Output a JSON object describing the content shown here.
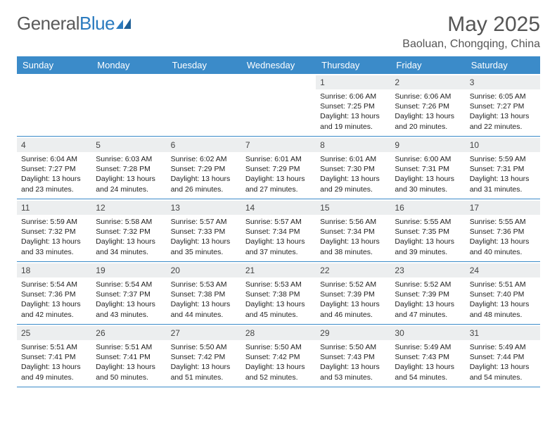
{
  "logo": {
    "text_part1": "General",
    "text_part2": "Blue",
    "brand_color": "#2b7bbf",
    "text_color": "#5a5a5a"
  },
  "header": {
    "month_title": "May 2025",
    "location": "Baoluan, Chongqing, China"
  },
  "colors": {
    "header_bg": "#3b8bc9",
    "header_text": "#ffffff",
    "daynum_bg": "#eceeef",
    "border": "#3b8bc9",
    "body_text": "#222222"
  },
  "day_names": [
    "Sunday",
    "Monday",
    "Tuesday",
    "Wednesday",
    "Thursday",
    "Friday",
    "Saturday"
  ],
  "weeks": [
    [
      {
        "n": "",
        "sr": "",
        "ss": "",
        "dl": ""
      },
      {
        "n": "",
        "sr": "",
        "ss": "",
        "dl": ""
      },
      {
        "n": "",
        "sr": "",
        "ss": "",
        "dl": ""
      },
      {
        "n": "",
        "sr": "",
        "ss": "",
        "dl": ""
      },
      {
        "n": "1",
        "sr": "Sunrise: 6:06 AM",
        "ss": "Sunset: 7:25 PM",
        "dl": "Daylight: 13 hours and 19 minutes."
      },
      {
        "n": "2",
        "sr": "Sunrise: 6:06 AM",
        "ss": "Sunset: 7:26 PM",
        "dl": "Daylight: 13 hours and 20 minutes."
      },
      {
        "n": "3",
        "sr": "Sunrise: 6:05 AM",
        "ss": "Sunset: 7:27 PM",
        "dl": "Daylight: 13 hours and 22 minutes."
      }
    ],
    [
      {
        "n": "4",
        "sr": "Sunrise: 6:04 AM",
        "ss": "Sunset: 7:27 PM",
        "dl": "Daylight: 13 hours and 23 minutes."
      },
      {
        "n": "5",
        "sr": "Sunrise: 6:03 AM",
        "ss": "Sunset: 7:28 PM",
        "dl": "Daylight: 13 hours and 24 minutes."
      },
      {
        "n": "6",
        "sr": "Sunrise: 6:02 AM",
        "ss": "Sunset: 7:29 PM",
        "dl": "Daylight: 13 hours and 26 minutes."
      },
      {
        "n": "7",
        "sr": "Sunrise: 6:01 AM",
        "ss": "Sunset: 7:29 PM",
        "dl": "Daylight: 13 hours and 27 minutes."
      },
      {
        "n": "8",
        "sr": "Sunrise: 6:01 AM",
        "ss": "Sunset: 7:30 PM",
        "dl": "Daylight: 13 hours and 29 minutes."
      },
      {
        "n": "9",
        "sr": "Sunrise: 6:00 AM",
        "ss": "Sunset: 7:31 PM",
        "dl": "Daylight: 13 hours and 30 minutes."
      },
      {
        "n": "10",
        "sr": "Sunrise: 5:59 AM",
        "ss": "Sunset: 7:31 PM",
        "dl": "Daylight: 13 hours and 31 minutes."
      }
    ],
    [
      {
        "n": "11",
        "sr": "Sunrise: 5:59 AM",
        "ss": "Sunset: 7:32 PM",
        "dl": "Daylight: 13 hours and 33 minutes."
      },
      {
        "n": "12",
        "sr": "Sunrise: 5:58 AM",
        "ss": "Sunset: 7:32 PM",
        "dl": "Daylight: 13 hours and 34 minutes."
      },
      {
        "n": "13",
        "sr": "Sunrise: 5:57 AM",
        "ss": "Sunset: 7:33 PM",
        "dl": "Daylight: 13 hours and 35 minutes."
      },
      {
        "n": "14",
        "sr": "Sunrise: 5:57 AM",
        "ss": "Sunset: 7:34 PM",
        "dl": "Daylight: 13 hours and 37 minutes."
      },
      {
        "n": "15",
        "sr": "Sunrise: 5:56 AM",
        "ss": "Sunset: 7:34 PM",
        "dl": "Daylight: 13 hours and 38 minutes."
      },
      {
        "n": "16",
        "sr": "Sunrise: 5:55 AM",
        "ss": "Sunset: 7:35 PM",
        "dl": "Daylight: 13 hours and 39 minutes."
      },
      {
        "n": "17",
        "sr": "Sunrise: 5:55 AM",
        "ss": "Sunset: 7:36 PM",
        "dl": "Daylight: 13 hours and 40 minutes."
      }
    ],
    [
      {
        "n": "18",
        "sr": "Sunrise: 5:54 AM",
        "ss": "Sunset: 7:36 PM",
        "dl": "Daylight: 13 hours and 42 minutes."
      },
      {
        "n": "19",
        "sr": "Sunrise: 5:54 AM",
        "ss": "Sunset: 7:37 PM",
        "dl": "Daylight: 13 hours and 43 minutes."
      },
      {
        "n": "20",
        "sr": "Sunrise: 5:53 AM",
        "ss": "Sunset: 7:38 PM",
        "dl": "Daylight: 13 hours and 44 minutes."
      },
      {
        "n": "21",
        "sr": "Sunrise: 5:53 AM",
        "ss": "Sunset: 7:38 PM",
        "dl": "Daylight: 13 hours and 45 minutes."
      },
      {
        "n": "22",
        "sr": "Sunrise: 5:52 AM",
        "ss": "Sunset: 7:39 PM",
        "dl": "Daylight: 13 hours and 46 minutes."
      },
      {
        "n": "23",
        "sr": "Sunrise: 5:52 AM",
        "ss": "Sunset: 7:39 PM",
        "dl": "Daylight: 13 hours and 47 minutes."
      },
      {
        "n": "24",
        "sr": "Sunrise: 5:51 AM",
        "ss": "Sunset: 7:40 PM",
        "dl": "Daylight: 13 hours and 48 minutes."
      }
    ],
    [
      {
        "n": "25",
        "sr": "Sunrise: 5:51 AM",
        "ss": "Sunset: 7:41 PM",
        "dl": "Daylight: 13 hours and 49 minutes."
      },
      {
        "n": "26",
        "sr": "Sunrise: 5:51 AM",
        "ss": "Sunset: 7:41 PM",
        "dl": "Daylight: 13 hours and 50 minutes."
      },
      {
        "n": "27",
        "sr": "Sunrise: 5:50 AM",
        "ss": "Sunset: 7:42 PM",
        "dl": "Daylight: 13 hours and 51 minutes."
      },
      {
        "n": "28",
        "sr": "Sunrise: 5:50 AM",
        "ss": "Sunset: 7:42 PM",
        "dl": "Daylight: 13 hours and 52 minutes."
      },
      {
        "n": "29",
        "sr": "Sunrise: 5:50 AM",
        "ss": "Sunset: 7:43 PM",
        "dl": "Daylight: 13 hours and 53 minutes."
      },
      {
        "n": "30",
        "sr": "Sunrise: 5:49 AM",
        "ss": "Sunset: 7:43 PM",
        "dl": "Daylight: 13 hours and 54 minutes."
      },
      {
        "n": "31",
        "sr": "Sunrise: 5:49 AM",
        "ss": "Sunset: 7:44 PM",
        "dl": "Daylight: 13 hours and 54 minutes."
      }
    ]
  ]
}
